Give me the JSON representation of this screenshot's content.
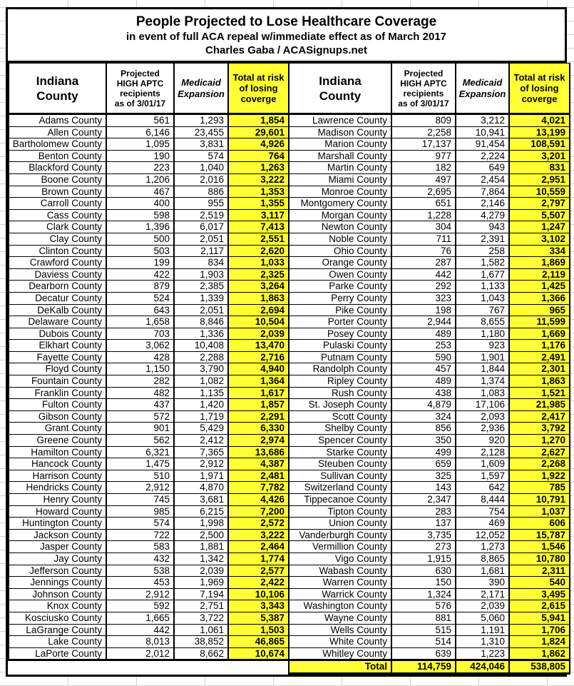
{
  "colors": {
    "highlight": "#FFFF33",
    "border": "#000000",
    "gridline": "#D0D0D0"
  },
  "title": {
    "main": "People Projected to Lose Healthcare Coverage",
    "subtitle": "in event of full ACA repeal w/immediate effect as of March 2017",
    "attribution": "Charles Gaba / ACASignups.net"
  },
  "headers": {
    "county": "Indiana\nCounty",
    "aptc": "Projected\nHIGH APTC\nrecipients\nas of 3/01/17",
    "medicaid": "Medicaid\nExpansion",
    "total": "Total at risk\nof losing\ncoverge"
  },
  "chart_data": {
    "type": "table",
    "title": "People Projected to Lose Healthcare Coverage",
    "subtitle": "in event of full ACA repeal w/immediate effect as of March 2017",
    "attribution": "Charles Gaba / ACASignups.net",
    "columns": [
      "Indiana County",
      "Projected HIGH APTC recipients as of 3/01/17",
      "Medicaid Expansion",
      "Total at risk of losing coverge"
    ],
    "left_rows": [
      {
        "county": "Adams County",
        "aptc": "561",
        "medicaid": "1,293",
        "total": "1,854"
      },
      {
        "county": "Allen County",
        "aptc": "6,146",
        "medicaid": "23,455",
        "total": "29,601"
      },
      {
        "county": "Bartholomew County",
        "aptc": "1,095",
        "medicaid": "3,831",
        "total": "4,926"
      },
      {
        "county": "Benton County",
        "aptc": "190",
        "medicaid": "574",
        "total": "764"
      },
      {
        "county": "Blackford County",
        "aptc": "223",
        "medicaid": "1,040",
        "total": "1,263"
      },
      {
        "county": "Boone County",
        "aptc": "1,206",
        "medicaid": "2,016",
        "total": "3,222"
      },
      {
        "county": "Brown County",
        "aptc": "467",
        "medicaid": "886",
        "total": "1,353"
      },
      {
        "county": "Carroll County",
        "aptc": "400",
        "medicaid": "955",
        "total": "1,355"
      },
      {
        "county": "Cass County",
        "aptc": "598",
        "medicaid": "2,519",
        "total": "3,117"
      },
      {
        "county": "Clark County",
        "aptc": "1,396",
        "medicaid": "6,017",
        "total": "7,413"
      },
      {
        "county": "Clay County",
        "aptc": "500",
        "medicaid": "2,051",
        "total": "2,551"
      },
      {
        "county": "Clinton County",
        "aptc": "503",
        "medicaid": "2,117",
        "total": "2,620"
      },
      {
        "county": "Crawford County",
        "aptc": "199",
        "medicaid": "834",
        "total": "1,033"
      },
      {
        "county": "Daviess County",
        "aptc": "422",
        "medicaid": "1,903",
        "total": "2,325"
      },
      {
        "county": "Dearborn County",
        "aptc": "879",
        "medicaid": "2,385",
        "total": "3,264"
      },
      {
        "county": "Decatur County",
        "aptc": "524",
        "medicaid": "1,339",
        "total": "1,863"
      },
      {
        "county": "DeKalb County",
        "aptc": "643",
        "medicaid": "2,051",
        "total": "2,694"
      },
      {
        "county": "Delaware County",
        "aptc": "1,658",
        "medicaid": "8,846",
        "total": "10,504"
      },
      {
        "county": "Dubois County",
        "aptc": "703",
        "medicaid": "1,336",
        "total": "2,039"
      },
      {
        "county": "Elkhart County",
        "aptc": "3,062",
        "medicaid": "10,408",
        "total": "13,470"
      },
      {
        "county": "Fayette County",
        "aptc": "428",
        "medicaid": "2,288",
        "total": "2,716"
      },
      {
        "county": "Floyd County",
        "aptc": "1,150",
        "medicaid": "3,790",
        "total": "4,940"
      },
      {
        "county": "Fountain County",
        "aptc": "282",
        "medicaid": "1,082",
        "total": "1,364"
      },
      {
        "county": "Franklin County",
        "aptc": "482",
        "medicaid": "1,135",
        "total": "1,617"
      },
      {
        "county": "Fulton County",
        "aptc": "437",
        "medicaid": "1,420",
        "total": "1,857"
      },
      {
        "county": "Gibson County",
        "aptc": "572",
        "medicaid": "1,719",
        "total": "2,291"
      },
      {
        "county": "Grant County",
        "aptc": "901",
        "medicaid": "5,429",
        "total": "6,330"
      },
      {
        "county": "Greene County",
        "aptc": "562",
        "medicaid": "2,412",
        "total": "2,974"
      },
      {
        "county": "Hamilton County",
        "aptc": "6,321",
        "medicaid": "7,365",
        "total": "13,686"
      },
      {
        "county": "Hancock County",
        "aptc": "1,475",
        "medicaid": "2,912",
        "total": "4,387"
      },
      {
        "county": "Harrison County",
        "aptc": "510",
        "medicaid": "1,971",
        "total": "2,481"
      },
      {
        "county": "Hendricks County",
        "aptc": "2,912",
        "medicaid": "4,870",
        "total": "7,782"
      },
      {
        "county": "Henry County",
        "aptc": "745",
        "medicaid": "3,681",
        "total": "4,426"
      },
      {
        "county": "Howard County",
        "aptc": "985",
        "medicaid": "6,215",
        "total": "7,200"
      },
      {
        "county": "Huntington County",
        "aptc": "574",
        "medicaid": "1,998",
        "total": "2,572"
      },
      {
        "county": "Jackson County",
        "aptc": "722",
        "medicaid": "2,500",
        "total": "3,222"
      },
      {
        "county": "Jasper County",
        "aptc": "583",
        "medicaid": "1,881",
        "total": "2,464"
      },
      {
        "county": "Jay County",
        "aptc": "432",
        "medicaid": "1,342",
        "total": "1,774"
      },
      {
        "county": "Jefferson County",
        "aptc": "538",
        "medicaid": "2,039",
        "total": "2,577"
      },
      {
        "county": "Jennings County",
        "aptc": "453",
        "medicaid": "1,969",
        "total": "2,422"
      },
      {
        "county": "Johnson County",
        "aptc": "2,912",
        "medicaid": "7,194",
        "total": "10,106"
      },
      {
        "county": "Knox County",
        "aptc": "592",
        "medicaid": "2,751",
        "total": "3,343"
      },
      {
        "county": "Kosciusko County",
        "aptc": "1,665",
        "medicaid": "3,722",
        "total": "5,387"
      },
      {
        "county": "LaGrange County",
        "aptc": "442",
        "medicaid": "1,061",
        "total": "1,503"
      },
      {
        "county": "Lake County",
        "aptc": "8,013",
        "medicaid": "38,852",
        "total": "46,865"
      },
      {
        "county": "LaPorte County",
        "aptc": "2,012",
        "medicaid": "8,662",
        "total": "10,674"
      }
    ],
    "right_rows": [
      {
        "county": "Lawrence County",
        "aptc": "809",
        "medicaid": "3,212",
        "total": "4,021"
      },
      {
        "county": "Madison County",
        "aptc": "2,258",
        "medicaid": "10,941",
        "total": "13,199"
      },
      {
        "county": "Marion County",
        "aptc": "17,137",
        "medicaid": "91,454",
        "total": "108,591"
      },
      {
        "county": "Marshall County",
        "aptc": "977",
        "medicaid": "2,224",
        "total": "3,201"
      },
      {
        "county": "Martin County",
        "aptc": "182",
        "medicaid": "649",
        "total": "831"
      },
      {
        "county": "Miami County",
        "aptc": "497",
        "medicaid": "2,454",
        "total": "2,951"
      },
      {
        "county": "Monroe County",
        "aptc": "2,695",
        "medicaid": "7,864",
        "total": "10,559"
      },
      {
        "county": "Montgomery County",
        "aptc": "651",
        "medicaid": "2,146",
        "total": "2,797"
      },
      {
        "county": "Morgan County",
        "aptc": "1,228",
        "medicaid": "4,279",
        "total": "5,507"
      },
      {
        "county": "Newton County",
        "aptc": "304",
        "medicaid": "943",
        "total": "1,247"
      },
      {
        "county": "Noble County",
        "aptc": "711",
        "medicaid": "2,391",
        "total": "3,102"
      },
      {
        "county": "Ohio County",
        "aptc": "76",
        "medicaid": "258",
        "total": "334"
      },
      {
        "county": "Orange County",
        "aptc": "287",
        "medicaid": "1,582",
        "total": "1,869"
      },
      {
        "county": "Owen County",
        "aptc": "442",
        "medicaid": "1,677",
        "total": "2,119"
      },
      {
        "county": "Parke County",
        "aptc": "292",
        "medicaid": "1,133",
        "total": "1,425"
      },
      {
        "county": "Perry County",
        "aptc": "323",
        "medicaid": "1,043",
        "total": "1,366"
      },
      {
        "county": "Pike County",
        "aptc": "198",
        "medicaid": "767",
        "total": "965"
      },
      {
        "county": "Porter County",
        "aptc": "2,944",
        "medicaid": "8,655",
        "total": "11,599"
      },
      {
        "county": "Posey County",
        "aptc": "489",
        "medicaid": "1,180",
        "total": "1,669"
      },
      {
        "county": "Pulaski County",
        "aptc": "253",
        "medicaid": "923",
        "total": "1,176"
      },
      {
        "county": "Putnam County",
        "aptc": "590",
        "medicaid": "1,901",
        "total": "2,491"
      },
      {
        "county": "Randolph County",
        "aptc": "457",
        "medicaid": "1,844",
        "total": "2,301"
      },
      {
        "county": "Ripley County",
        "aptc": "489",
        "medicaid": "1,374",
        "total": "1,863"
      },
      {
        "county": "Rush County",
        "aptc": "438",
        "medicaid": "1,083",
        "total": "1,521"
      },
      {
        "county": "St. Joseph County",
        "aptc": "4,879",
        "medicaid": "17,106",
        "total": "21,985"
      },
      {
        "county": "Scott County",
        "aptc": "324",
        "medicaid": "2,093",
        "total": "2,417"
      },
      {
        "county": "Shelby County",
        "aptc": "856",
        "medicaid": "2,936",
        "total": "3,792"
      },
      {
        "county": "Spencer County",
        "aptc": "350",
        "medicaid": "920",
        "total": "1,270"
      },
      {
        "county": "Starke County",
        "aptc": "499",
        "medicaid": "2,128",
        "total": "2,627"
      },
      {
        "county": "Steuben County",
        "aptc": "659",
        "medicaid": "1,609",
        "total": "2,268"
      },
      {
        "county": "Sullivan County",
        "aptc": "325",
        "medicaid": "1,597",
        "total": "1,922"
      },
      {
        "county": "Switzerland County",
        "aptc": "143",
        "medicaid": "642",
        "total": "785"
      },
      {
        "county": "Tippecanoe County",
        "aptc": "2,347",
        "medicaid": "8,444",
        "total": "10,791"
      },
      {
        "county": "Tipton County",
        "aptc": "283",
        "medicaid": "754",
        "total": "1,037"
      },
      {
        "county": "Union County",
        "aptc": "137",
        "medicaid": "469",
        "total": "606"
      },
      {
        "county": "Vanderburgh County",
        "aptc": "3,735",
        "medicaid": "12,052",
        "total": "15,787"
      },
      {
        "county": "Vermillion County",
        "aptc": "273",
        "medicaid": "1,273",
        "total": "1,546"
      },
      {
        "county": "Vigo County",
        "aptc": "1,915",
        "medicaid": "8,865",
        "total": "10,780"
      },
      {
        "county": "Wabash County",
        "aptc": "630",
        "medicaid": "1,681",
        "total": "2,311"
      },
      {
        "county": "Warren County",
        "aptc": "150",
        "medicaid": "390",
        "total": "540"
      },
      {
        "county": "Warrick County",
        "aptc": "1,324",
        "medicaid": "2,171",
        "total": "3,495"
      },
      {
        "county": "Washington County",
        "aptc": "576",
        "medicaid": "2,039",
        "total": "2,615"
      },
      {
        "county": "Wayne County",
        "aptc": "881",
        "medicaid": "5,060",
        "total": "5,941"
      },
      {
        "county": "Wells County",
        "aptc": "515",
        "medicaid": "1,191",
        "total": "1,706"
      },
      {
        "county": "White County",
        "aptc": "514",
        "medicaid": "1,310",
        "total": "1,824"
      },
      {
        "county": "Whitley County",
        "aptc": "639",
        "medicaid": "1,223",
        "total": "1,862"
      }
    ],
    "total_row": {
      "label": "Total",
      "aptc": "114,759",
      "medicaid": "424,046",
      "total": "538,805"
    }
  }
}
